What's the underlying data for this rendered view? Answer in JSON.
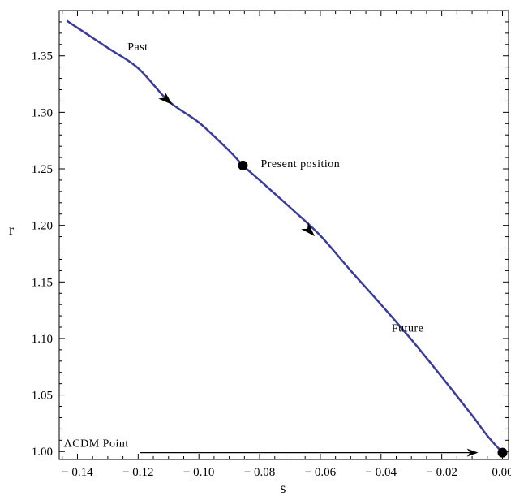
{
  "chart_data": {
    "type": "line",
    "title": "",
    "xlabel": "s",
    "ylabel": "r",
    "xlim": [
      -0.146,
      0.002
    ],
    "ylim": [
      0.993,
      1.39
    ],
    "grid": false,
    "x_ticks": [
      {
        "value": -0.14,
        "label": "− 0.14"
      },
      {
        "value": -0.12,
        "label": "− 0.12"
      },
      {
        "value": -0.1,
        "label": "− 0.10"
      },
      {
        "value": -0.08,
        "label": "− 0.08"
      },
      {
        "value": -0.06,
        "label": "− 0.06"
      },
      {
        "value": -0.04,
        "label": "− 0.04"
      },
      {
        "value": -0.02,
        "label": "− 0.02"
      },
      {
        "value": 0.0,
        "label": "0.00"
      }
    ],
    "y_ticks": [
      {
        "value": 1.0,
        "label": "1.00"
      },
      {
        "value": 1.05,
        "label": "1.05"
      },
      {
        "value": 1.1,
        "label": "1.10"
      },
      {
        "value": 1.15,
        "label": "1.15"
      },
      {
        "value": 1.2,
        "label": "1.20"
      },
      {
        "value": 1.25,
        "label": "1.25"
      },
      {
        "value": 1.3,
        "label": "1.30"
      },
      {
        "value": 1.35,
        "label": "1.35"
      }
    ],
    "series": [
      {
        "color": "#3b3b9a",
        "points": [
          [
            -0.1435,
            1.381
          ],
          [
            -0.13,
            1.357
          ],
          [
            -0.12,
            1.339
          ],
          [
            -0.11,
            1.31
          ],
          [
            -0.1,
            1.291
          ],
          [
            -0.09,
            1.266
          ],
          [
            -0.0855,
            1.253
          ],
          [
            -0.08,
            1.24
          ],
          [
            -0.07,
            1.216
          ],
          [
            -0.06,
            1.191
          ],
          [
            -0.05,
            1.16
          ],
          [
            -0.04,
            1.13
          ],
          [
            -0.03,
            1.099
          ],
          [
            -0.02,
            1.066
          ],
          [
            -0.01,
            1.032
          ],
          [
            -0.005,
            1.014
          ],
          [
            0.0,
            0.999
          ]
        ]
      }
    ],
    "markers": [
      {
        "x": -0.0855,
        "y": 1.253,
        "label": "Present    position"
      },
      {
        "x": 0.0,
        "y": 0.999
      }
    ],
    "direction_arrows": [
      {
        "x": -0.1105,
        "y": 1.311
      },
      {
        "x": -0.0635,
        "y": 1.195
      }
    ],
    "annotations": [
      {
        "text": "Past",
        "x": -0.1235,
        "y": 1.355
      },
      {
        "text": "Future",
        "x": -0.0365,
        "y": 1.106
      }
    ],
    "lcdm": {
      "text": "ΛCDM Point",
      "label_x": -0.1445,
      "label_y": 1.004,
      "arrow_from": [
        -0.1195,
        0.999
      ],
      "arrow_to": [
        -0.008,
        0.999
      ]
    }
  }
}
